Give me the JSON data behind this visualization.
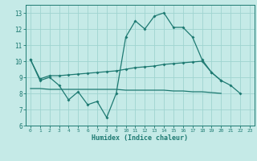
{
  "xlabel": "Humidex (Indice chaleur)",
  "xlim": [
    -0.5,
    23.5
  ],
  "ylim": [
    6,
    13.5
  ],
  "yticks": [
    6,
    7,
    8,
    9,
    10,
    11,
    12,
    13
  ],
  "xticks": [
    0,
    1,
    2,
    3,
    4,
    5,
    6,
    7,
    8,
    9,
    10,
    11,
    12,
    13,
    14,
    15,
    16,
    17,
    18,
    19,
    20,
    21,
    22,
    23
  ],
  "bg_color": "#c5eae7",
  "grid_color": "#9fd4d0",
  "line_color": "#1e7a72",
  "line1_x": [
    0,
    1,
    2,
    3,
    4,
    5,
    6,
    7,
    8,
    9,
    10,
    11,
    12,
    13,
    14,
    15,
    16,
    17,
    18,
    19,
    20,
    21,
    22
  ],
  "line1_y": [
    10.1,
    8.8,
    9.0,
    8.5,
    7.6,
    8.1,
    7.3,
    7.5,
    6.5,
    8.0,
    11.5,
    12.5,
    12.0,
    12.8,
    13.0,
    12.1,
    12.1,
    11.5,
    10.1,
    9.3,
    8.8,
    8.5,
    8.0
  ],
  "line1_markers": [
    true,
    true,
    true,
    true,
    true,
    true,
    true,
    true,
    true,
    true,
    true,
    true,
    true,
    true,
    true,
    true,
    true,
    true,
    true,
    true,
    true,
    true,
    true
  ],
  "line2_x": [
    0,
    1,
    2,
    3,
    4,
    5,
    6,
    7,
    8,
    9,
    10,
    11,
    12,
    13,
    14,
    15,
    16,
    17,
    18,
    19,
    20
  ],
  "line2_y": [
    10.1,
    8.9,
    9.1,
    9.1,
    9.15,
    9.2,
    9.25,
    9.3,
    9.35,
    9.4,
    9.5,
    9.6,
    9.65,
    9.7,
    9.8,
    9.85,
    9.9,
    9.95,
    10.0,
    9.3,
    8.8
  ],
  "line3_x": [
    0,
    1,
    2,
    3,
    4,
    5,
    6,
    7,
    8,
    9,
    10,
    11,
    12,
    13,
    14,
    15,
    16,
    17,
    18,
    19,
    20
  ],
  "line3_y": [
    8.3,
    8.3,
    8.25,
    8.25,
    8.25,
    8.25,
    8.25,
    8.25,
    8.25,
    8.25,
    8.2,
    8.2,
    8.2,
    8.2,
    8.2,
    8.15,
    8.15,
    8.1,
    8.1,
    8.05,
    8.0
  ]
}
